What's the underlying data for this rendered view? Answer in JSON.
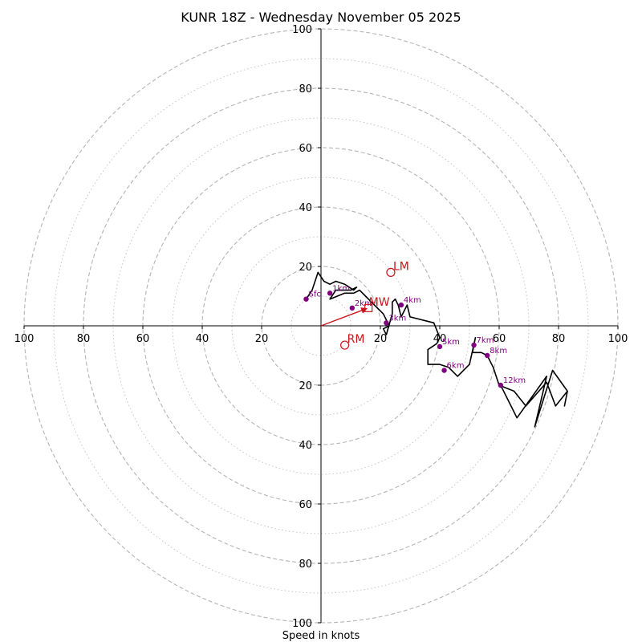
{
  "chart_data": {
    "type": "hodograph",
    "title": "KUNR 18Z - Wednesday November 05 2025",
    "xlabel": "Speed in knots",
    "units": "knots",
    "axis_range": [
      -100,
      100
    ],
    "ring_values_major": [
      20,
      40,
      60,
      80,
      100
    ],
    "ring_values_minor": [
      10,
      30,
      50,
      70,
      90
    ],
    "x_tick_labels": [
      "100",
      "80",
      "60",
      "40",
      "20",
      "20",
      "40",
      "60",
      "80",
      "100"
    ],
    "y_tick_labels": [
      "100",
      "80",
      "60",
      "40",
      "20",
      "20",
      "40",
      "60",
      "80",
      "100"
    ],
    "x_tick_values": [
      -100,
      -80,
      -60,
      -40,
      -20,
      20,
      40,
      60,
      80,
      100
    ],
    "y_tick_values": [
      100,
      80,
      60,
      40,
      20,
      -20,
      -40,
      -60,
      -80,
      -100
    ],
    "trace": {
      "color": "#000000",
      "u": [
        -5,
        -3,
        -1,
        1,
        3,
        5,
        8,
        11,
        12,
        10,
        5,
        3,
        8,
        11,
        13,
        15,
        17,
        19,
        21,
        22,
        23,
        21,
        22,
        24,
        24,
        25,
        26,
        27,
        29,
        30,
        38,
        40,
        39,
        36,
        36,
        40,
        43,
        46,
        50,
        52,
        51,
        52,
        54,
        56,
        58,
        60,
        65,
        69,
        76,
        79,
        83,
        82,
        83,
        78,
        72,
        76,
        66,
        61,
        60
      ],
      "v": [
        9,
        12,
        18,
        15,
        14,
        15,
        14,
        12,
        13,
        12,
        12,
        9,
        11,
        11,
        12,
        10,
        8,
        6,
        4,
        2,
        0,
        -1,
        -3,
        4,
        8,
        9,
        7,
        3,
        7,
        3,
        1,
        -4,
        -6,
        -8,
        -13,
        -13,
        -14,
        -17,
        -13,
        -4,
        -9,
        -9,
        -9,
        -10,
        -14,
        -20,
        -22,
        -27,
        -19,
        -27,
        -22,
        -27,
        -22,
        -15,
        -34,
        -17,
        -31,
        -21,
        -20
      ]
    },
    "height_markers": [
      {
        "label": "Sfc",
        "u": -5,
        "v": 9
      },
      {
        "label": "1km",
        "u": 3,
        "v": 11
      },
      {
        "label": "2km",
        "u": 10.5,
        "v": 6
      },
      {
        "label": "3km",
        "u": 22,
        "v": 1
      },
      {
        "label": "4km",
        "u": 27,
        "v": 7
      },
      {
        "label": "5km",
        "u": 40,
        "v": -7
      },
      {
        "label": "6km",
        "u": 41.5,
        "v": -15
      },
      {
        "label": "7km",
        "u": 51.5,
        "v": -6.5
      },
      {
        "label": "8km",
        "u": 56,
        "v": -10
      },
      {
        "label": "12km",
        "u": 60.5,
        "v": -20
      }
    ],
    "storm_motion": {
      "color": "#c8151b",
      "mean_wind": {
        "label": "MW",
        "u": 16,
        "v": 6
      },
      "left_mover": {
        "label": "LM",
        "u": 23.5,
        "v": 18
      },
      "right_mover": {
        "label": "RM",
        "u": 8,
        "v": -6.5
      }
    }
  }
}
